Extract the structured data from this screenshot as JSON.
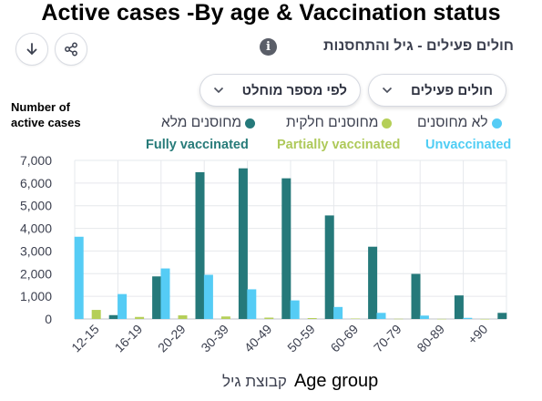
{
  "header": {
    "english_title": "Active cases -By age & Vaccination status",
    "hebrew_title": "חולים פעילים - גיל והתחסנות",
    "info_label": "i"
  },
  "toolbar": {
    "download_icon": "download-icon",
    "share_icon": "share-icon"
  },
  "filters": {
    "metric_select": "חולים פעילים",
    "scale_select": "לפי מספר מוחלט"
  },
  "y_axis_label_lines": [
    "Number of",
    "active cases"
  ],
  "legend": [
    {
      "hebrew": "לא מחוסנים",
      "english": "Unvaccinated",
      "color": "#55ccf5",
      "text_color": "#4fcdf4"
    },
    {
      "hebrew": "מחוסנים חלקית",
      "english": "Partially vaccinated",
      "color": "#b5cf58",
      "text_color": "#aec95a"
    },
    {
      "hebrew": "מחוסנים מלא",
      "english": "Fully vaccinated",
      "color": "#25797a",
      "text_color": "#277b79"
    }
  ],
  "x_axis_title": {
    "hebrew": "קבוצת גיל",
    "english": "Age group"
  },
  "chart_data": {
    "type": "bar",
    "categories": [
      "12-15",
      "16-19",
      "20-29",
      "30-39",
      "40-49",
      "50-59",
      "60-69",
      "70-79",
      "80-89",
      "+90"
    ],
    "series": [
      {
        "name": "Unvaccinated",
        "color": "#55ccf5",
        "values": [
          3630,
          1100,
          2230,
          1950,
          1310,
          820,
          530,
          270,
          150,
          50
        ]
      },
      {
        "name": "Partially vaccinated",
        "color": "#b5cf58",
        "values": [
          400,
          90,
          160,
          110,
          60,
          40,
          20,
          10,
          5,
          2
        ]
      },
      {
        "name": "Fully vaccinated",
        "color": "#25797a",
        "values": [
          170,
          1880,
          6480,
          6650,
          6210,
          4570,
          3190,
          1990,
          1040,
          270
        ]
      }
    ],
    "yticks": [
      0,
      1000,
      2000,
      3000,
      4000,
      5000,
      6000,
      7000
    ],
    "ytick_labels": [
      "0",
      "1,000",
      "2,000",
      "3,000",
      "4,000",
      "5,000",
      "6,000",
      "7,000"
    ],
    "ylim": [
      0,
      7000
    ],
    "grid": true
  }
}
